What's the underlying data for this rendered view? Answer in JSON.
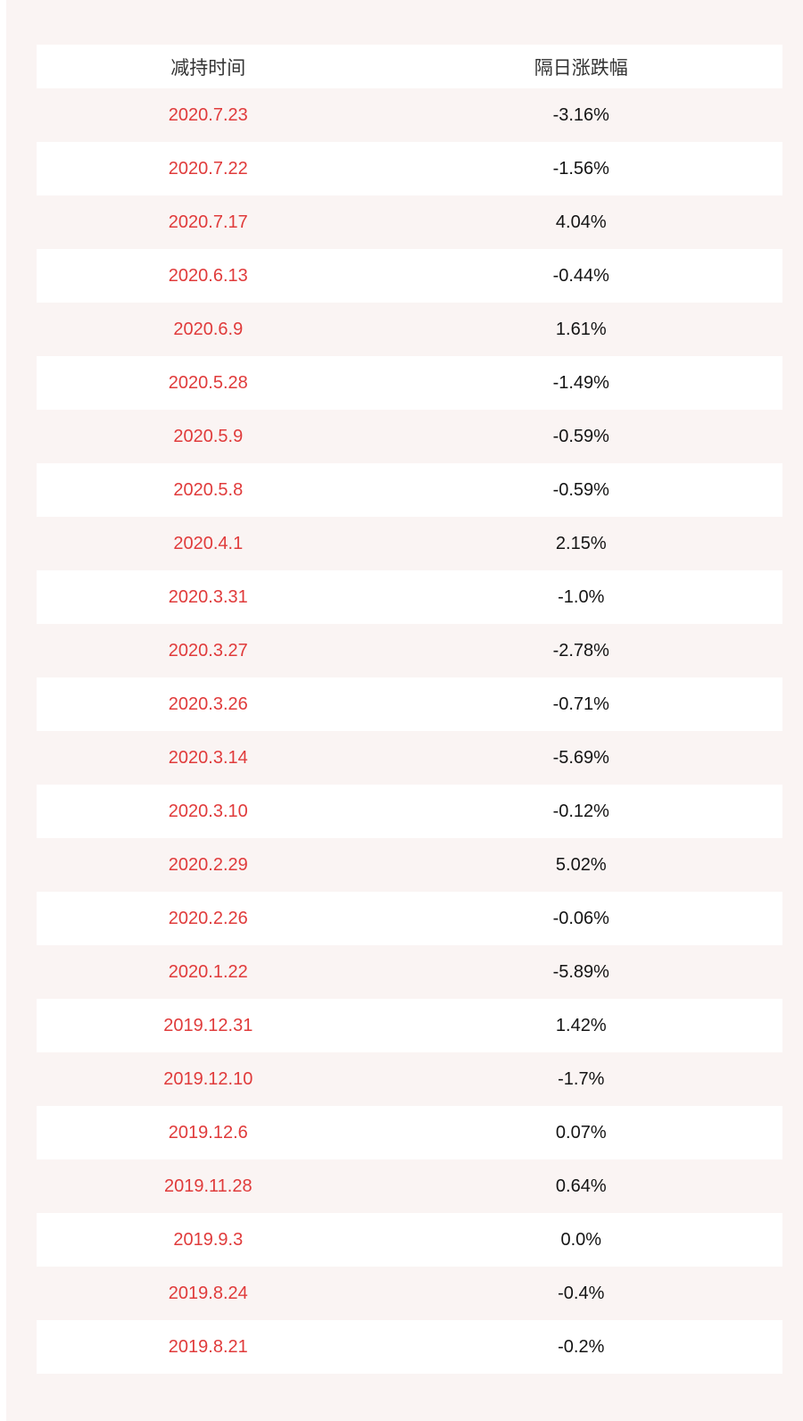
{
  "style": {
    "page_background": "#faf4f3",
    "row_background": "#ffffff",
    "date_text_color": "#e03b3b",
    "value_text_color": "#141414",
    "header_text_color": "#333333"
  },
  "chart_data": {
    "type": "table",
    "title": "",
    "columns": [
      "减持时间",
      "隔日涨跌幅"
    ],
    "rows": [
      [
        "2020.7.23",
        "-3.16%"
      ],
      [
        "2020.7.22",
        "-1.56%"
      ],
      [
        "2020.7.17",
        "4.04%"
      ],
      [
        "2020.6.13",
        "-0.44%"
      ],
      [
        "2020.6.9",
        "1.61%"
      ],
      [
        "2020.5.28",
        "-1.49%"
      ],
      [
        "2020.5.9",
        "-0.59%"
      ],
      [
        "2020.5.8",
        "-0.59%"
      ],
      [
        "2020.4.1",
        "2.15%"
      ],
      [
        "2020.3.31",
        "-1.0%"
      ],
      [
        "2020.3.27",
        "-2.78%"
      ],
      [
        "2020.3.26",
        "-0.71%"
      ],
      [
        "2020.3.14",
        "-5.69%"
      ],
      [
        "2020.3.10",
        "-0.12%"
      ],
      [
        "2020.2.29",
        "5.02%"
      ],
      [
        "2020.2.26",
        "-0.06%"
      ],
      [
        "2020.1.22",
        "-5.89%"
      ],
      [
        "2019.12.31",
        "1.42%"
      ],
      [
        "2019.12.10",
        "-1.7%"
      ],
      [
        "2019.12.6",
        "0.07%"
      ],
      [
        "2019.11.28",
        "0.64%"
      ],
      [
        "2019.9.3",
        "0.0%"
      ],
      [
        "2019.8.24",
        "-0.4%"
      ],
      [
        "2019.8.21",
        "-0.2%"
      ]
    ],
    "values_numeric_pct": [
      -3.16,
      -1.56,
      4.04,
      -0.44,
      1.61,
      -1.49,
      -0.59,
      -0.59,
      2.15,
      -1.0,
      -2.78,
      -0.71,
      -5.69,
      -0.12,
      5.02,
      -0.06,
      -5.89,
      1.42,
      -1.7,
      0.07,
      0.64,
      0.0,
      -0.4,
      -0.2
    ],
    "layout_hints": {
      "alternating_rows": true,
      "first_data_row_background": "page-pink",
      "grid": false,
      "legend": "none"
    }
  }
}
